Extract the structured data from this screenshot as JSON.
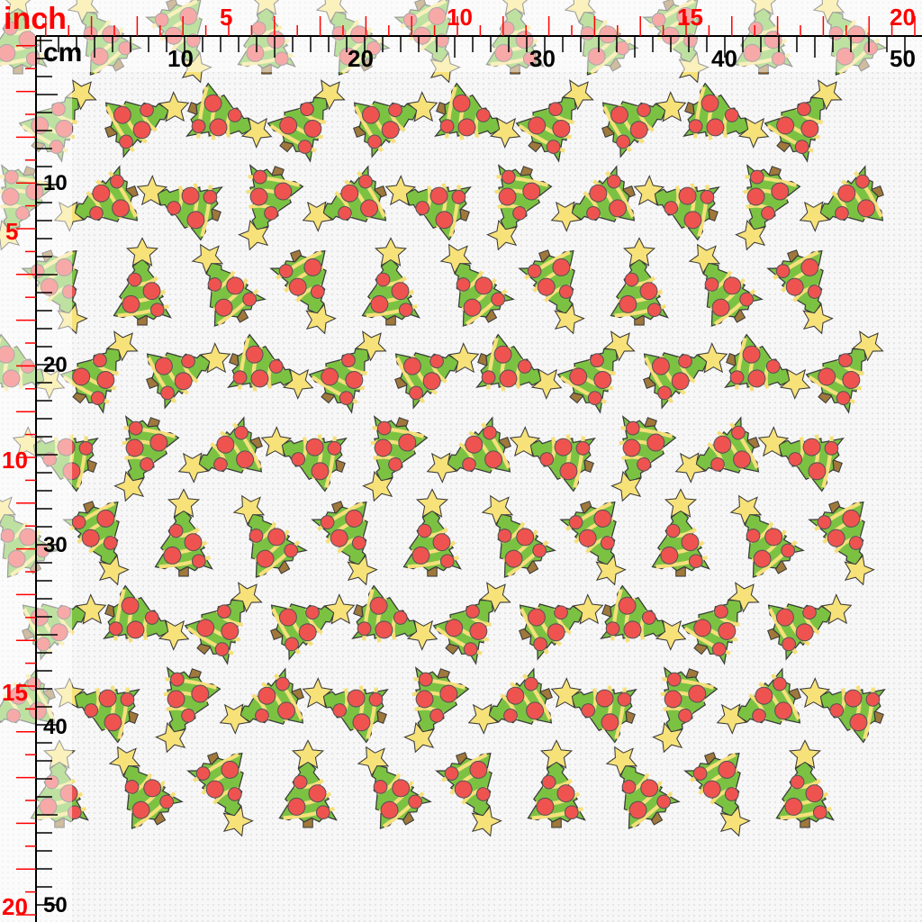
{
  "rulers": {
    "inch_unit_label": "inch",
    "cm_unit_label": "cm",
    "top_inch_labels": [
      "5",
      "10",
      "15",
      "20"
    ],
    "top_cm_labels": [
      "10",
      "20",
      "30",
      "40",
      "50"
    ],
    "left_inch_labels": [
      "5",
      "10",
      "15",
      "20"
    ],
    "left_cm_labels": [
      "10",
      "20",
      "30",
      "40",
      "50"
    ]
  },
  "pattern": {
    "motif": "christmas-tree",
    "colors": {
      "tree_green": "#7cc242",
      "ornament_red": "#ef5350",
      "garland_yellow": "#f5e07a",
      "star_yellow": "#f7e27a",
      "trunk_brown": "#a0783c",
      "outline": "#3a3a3a",
      "background": "#f7f7f7",
      "inch_ruler": "#ff0000",
      "cm_ruler": "#000000"
    }
  }
}
